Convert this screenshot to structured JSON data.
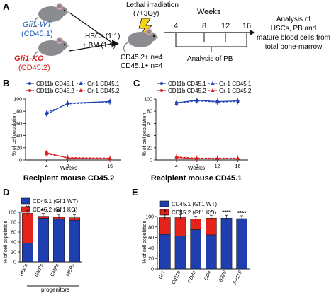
{
  "panelA": {
    "letter": "A",
    "wt_genotype": "Gfi1-WT",
    "wt_allele": "(CD45.1)",
    "ko_genotype": "Gfi1-KO",
    "ko_allele": "(CD45.2)",
    "irradiation_line1": "Lethal irradiation",
    "irradiation_line2": "(7+3Gy)",
    "transplant_line1": "HSCs (1:1)",
    "transplant_line2": "+ BM (1:1)",
    "recipient_line1": "CD45.2+ n=4",
    "recipient_line2": "CD45.1+ n=4",
    "weeks_label": "Weeks",
    "week_ticks": [
      "4",
      "8",
      "12",
      "16"
    ],
    "pb_label": "Analysis of PB",
    "analysis_line1": "Analysis of",
    "analysis_line2": "HSCs, PB and",
    "analysis_line3": "mature blood cells from",
    "analysis_line4": "total bone-marrow",
    "colors": {
      "wt": "#1f5fb4",
      "ko": "#d81e1e",
      "lightning": "#f2d21b"
    },
    "icons": [
      "mouse-icon",
      "lightning-icon",
      "syringe-arrow-icon"
    ]
  },
  "panelB": {
    "letter": "B",
    "legend": [
      "CD11b CD45.1",
      "CD11b CD45.2",
      "Gr-1 CD45.1",
      "Gr-1 CD45.2"
    ],
    "yticks": [
      "0",
      "20",
      "40",
      "60",
      "80",
      "100"
    ],
    "xticks": [
      "4",
      "8",
      "16"
    ],
    "ylabel": "% of cell population",
    "xlabel": "Weeks",
    "caption": "Recipient mouse CD45.2"
  },
  "panelC": {
    "letter": "C",
    "legend": [
      "CD11b CD45.1",
      "CD11b CD45.2",
      "Gr-1 CD45.1",
      "Gr-1 CD45.2"
    ],
    "yticks": [
      "0",
      "20",
      "40",
      "60",
      "80",
      "100"
    ],
    "xticks": [
      "4",
      "8",
      "12",
      "16"
    ],
    "ylabel": "% of cell population",
    "xlabel": "Weeks",
    "caption": "Recipient mouse CD45.1"
  },
  "panelD": {
    "letter": "D",
    "legend": [
      "CD45.1 (Gfi1 WT)",
      "CD45.2 (Gfi1 KO)"
    ],
    "yticks": [
      "0",
      "20",
      "40",
      "60",
      "80",
      "100"
    ],
    "ylabel": "% of cell population",
    "categories": [
      "HSCs",
      "GMPs",
      "CMPs",
      "MEPs"
    ],
    "group_label": "progenitors",
    "stars": [
      "**",
      "**",
      "**",
      "*"
    ]
  },
  "panelE": {
    "letter": "E",
    "legend": [
      "CD45.1 (Gfi1 WT)",
      "CD45.2 (Gfi1 KO)"
    ],
    "yticks": [
      "0",
      "20",
      "40",
      "60",
      "80",
      "100"
    ],
    "ylabel": "% of cell population",
    "categories": [
      "Gr1",
      "Cd11b",
      "CD8a",
      "CD4",
      "B220",
      "Ter119"
    ],
    "stars": [
      "*",
      "*",
      "",
      "*",
      "****",
      "****"
    ]
  },
  "chart_data": [
    {
      "panel": "B",
      "type": "line",
      "x": [
        4,
        8,
        16
      ],
      "xlabel": "Weeks",
      "ylabel": "% of cell population",
      "ylim": [
        0,
        100
      ],
      "legend_placement": "top",
      "series": [
        {
          "name": "CD11b CD45.1",
          "values": [
            75,
            93,
            96
          ]
        },
        {
          "name": "CD11b CD45.2",
          "values": [
            12,
            3,
            2
          ]
        },
        {
          "name": "Gr-1 CD45.1",
          "values": [
            78,
            92,
            95
          ]
        },
        {
          "name": "Gr-1 CD45.2",
          "values": [
            10,
            4,
            3
          ]
        }
      ]
    },
    {
      "panel": "C",
      "type": "line",
      "x": [
        4,
        8,
        12,
        16
      ],
      "xlabel": "Weeks",
      "ylabel": "% of cell population",
      "ylim": [
        0,
        100
      ],
      "legend_placement": "top",
      "series": [
        {
          "name": "CD11b CD45.1",
          "values": [
            94,
            98,
            96,
            97
          ]
        },
        {
          "name": "CD11b CD45.2",
          "values": [
            4,
            2,
            2,
            2
          ]
        },
        {
          "name": "Gr-1 CD45.1",
          "values": [
            93,
            97,
            95,
            96
          ]
        },
        {
          "name": "Gr-1 CD45.2",
          "values": [
            5,
            3,
            3,
            3
          ]
        }
      ]
    },
    {
      "panel": "D",
      "type": "bar",
      "stacked": true,
      "categories": [
        "HSCs",
        "GMPs",
        "CMPs",
        "MEPs"
      ],
      "ylabel": "% of cell population",
      "ylim": [
        0,
        100
      ],
      "series": [
        {
          "name": "CD45.1 (Gfi1 WT)",
          "values": [
            38,
            88,
            86,
            84
          ]
        },
        {
          "name": "CD45.2 (Gfi1 KO)",
          "values": [
            60,
            4,
            4,
            5
          ]
        }
      ]
    },
    {
      "panel": "E",
      "type": "bar",
      "stacked": true,
      "categories": [
        "Gr1",
        "Cd11b",
        "CD8a",
        "CD4",
        "B220",
        "Ter119"
      ],
      "ylabel": "% of cell population",
      "ylim": [
        0,
        100
      ],
      "series": [
        {
          "name": "CD45.1 (Gfi1 WT)",
          "values": [
            66,
            63,
            75,
            65,
            97,
            96
          ]
        },
        {
          "name": "CD45.2 (Gfi1 KO)",
          "values": [
            32,
            35,
            20,
            32,
            0,
            0
          ]
        }
      ]
    }
  ]
}
